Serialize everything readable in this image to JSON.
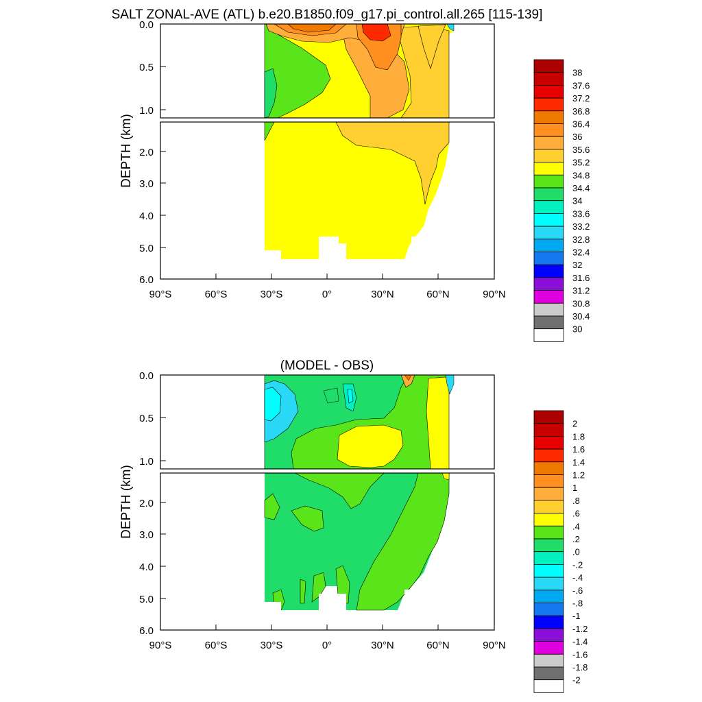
{
  "chart_data": [
    {
      "type": "heatmap",
      "title": "SALT ZONAL-AVE (ATL) b.e20.B1850.f09_g17.pi_control.all.265 [115-139]",
      "ylabel": "DEPTH (km)",
      "xlabel": "",
      "xlim": [
        -90,
        90
      ],
      "ylim": [
        0,
        6
      ],
      "x_ticks": [
        "90°S",
        "60°S",
        "30°S",
        "0°",
        "30°N",
        "60°N",
        "90°N"
      ],
      "y_ticks_upper": [
        "0.0",
        "0.5",
        "1.0"
      ],
      "y_ticks_lower": [
        "2.0",
        "3.0",
        "4.0",
        "5.0",
        "6.0"
      ],
      "colorbar": {
        "labels": [
          "38",
          "37.6",
          "37.2",
          "36.8",
          "36.4",
          "36",
          "35.6",
          "35.2",
          "34.8",
          "34.4",
          "34",
          "33.6",
          "33.2",
          "32.8",
          "32.4",
          "32",
          "31.6",
          "31.2",
          "30.8",
          "30.4",
          "30"
        ],
        "colors": [
          "#aa0000",
          "#c80000",
          "#e60000",
          "#ff2a00",
          "#f07a00",
          "#ff9020",
          "#ffae3c",
          "#ffd030",
          "#ffff00",
          "#5ae51a",
          "#20dd6a",
          "#00f0c0",
          "#00ffff",
          "#28d8f5",
          "#00a8f0",
          "#1478f0",
          "#0000ff",
          "#8a10d8",
          "#e000e0",
          "#cccccc",
          "#707070",
          "#ffffff"
        ]
      },
      "regions": [
        {
          "name": "fill-yellow",
          "value": "35.2-34.8"
        },
        {
          "name": "fill-green",
          "value": "34.4-34.8"
        },
        {
          "name": "fill-orange",
          "value": "35.6-36"
        },
        {
          "name": "fill-darkorange",
          "value": "36-36.4"
        },
        {
          "name": "fill-red",
          "value": "36.8-37.2"
        }
      ]
    },
    {
      "type": "heatmap",
      "title": "(MODEL - OBS)",
      "ylabel": "DEPTH (km)",
      "xlabel": "",
      "xlim": [
        -90,
        90
      ],
      "ylim": [
        0,
        6
      ],
      "x_ticks": [
        "90°S",
        "60°S",
        "30°S",
        "0°",
        "30°N",
        "60°N",
        "90°N"
      ],
      "y_ticks_upper": [
        "0.0",
        "0.5",
        "1.0"
      ],
      "y_ticks_lower": [
        "2.0",
        "3.0",
        "4.0",
        "5.0",
        "6.0"
      ],
      "colorbar": {
        "labels": [
          "2",
          "1.8",
          "1.6",
          "1.4",
          "1.2",
          "1",
          ".8",
          ".6",
          ".4",
          ".2",
          ".0",
          "-.2",
          "-.4",
          "-.6",
          "-.8",
          "-1",
          "-1.2",
          "-1.4",
          "-1.6",
          "-1.8",
          "-2"
        ],
        "colors": [
          "#aa0000",
          "#c80000",
          "#e60000",
          "#ff2a00",
          "#f07a00",
          "#ff9020",
          "#ffae3c",
          "#ffd030",
          "#ffff00",
          "#5ae51a",
          "#20dd6a",
          "#00f0c0",
          "#00ffff",
          "#28d8f5",
          "#00a8f0",
          "#1478f0",
          "#0000ff",
          "#8a10d8",
          "#e000e0",
          "#cccccc",
          "#707070",
          "#ffffff"
        ]
      },
      "regions": [
        {
          "name": "diff-light-green",
          "value": "0-0.2"
        },
        {
          "name": "diff-green",
          "value": "0.2-0.4"
        },
        {
          "name": "diff-yellow",
          "value": "0.4-0.6"
        },
        {
          "name": "diff-cyan",
          "value": "-0.4-0"
        }
      ]
    }
  ]
}
